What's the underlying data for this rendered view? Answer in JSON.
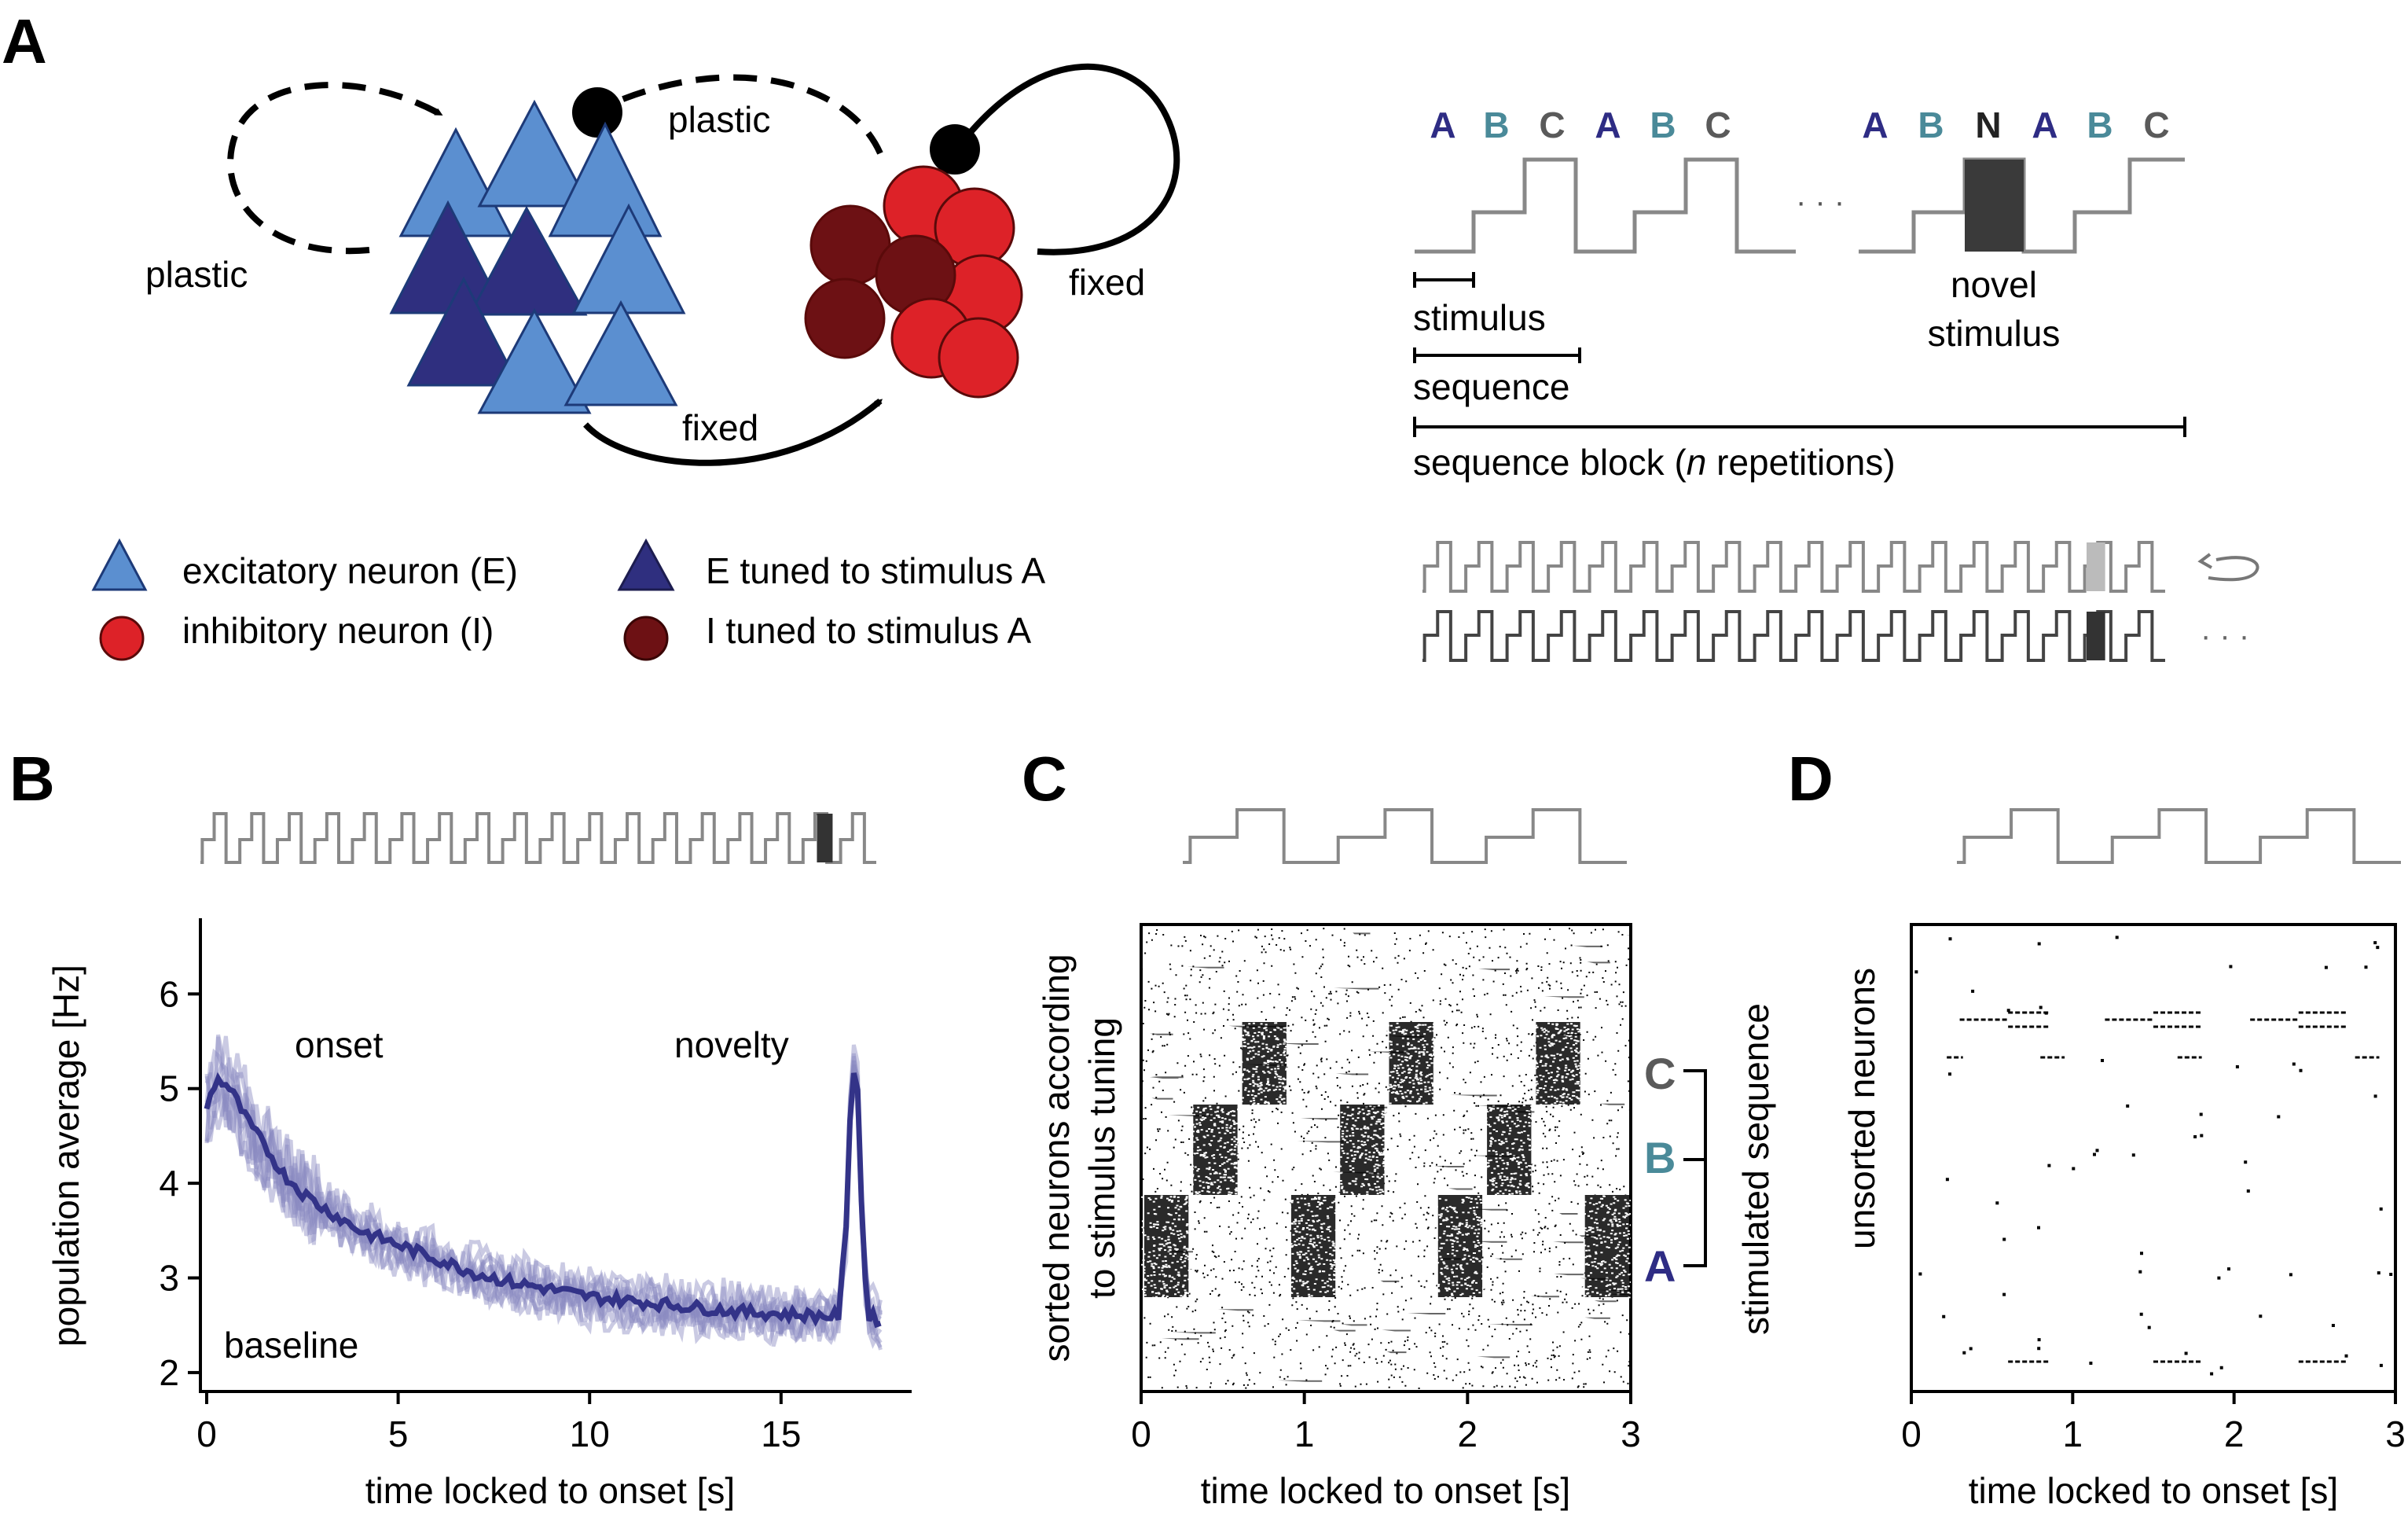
{
  "panel_labels": {
    "a": "A",
    "b": "B",
    "c": "C",
    "d": "D"
  },
  "colors": {
    "excitatory": "#5b8fd0",
    "excitatory_tuned": "#2f2f7f",
    "inhibitory": "#dd2228",
    "inhibitory_tuned": "#6d1114",
    "stimulus_A": "#2e2c84",
    "stimulus_B": "#4a8a99",
    "stimulus_C": "#5a5a5a",
    "novel": "#3a3a3a",
    "trace": "#9a9a9a",
    "mean_line": "#333388"
  },
  "panel_a": {
    "network": {
      "plastic_left": "plastic",
      "plastic_top": "plastic",
      "fixed_bottom": "fixed",
      "fixed_right": "fixed"
    },
    "legend": {
      "excitatory": "excitatory neuron (E)",
      "inhibitory": "inhibitory neuron (I)",
      "e_tuned": "E tuned to stimulus A",
      "i_tuned": "I tuned to stimulus A"
    },
    "protocol": {
      "letters_first": [
        "A",
        "B",
        "C",
        "A",
        "B",
        "C"
      ],
      "letters_second": [
        "A",
        "B",
        "N",
        "A",
        "B",
        "C"
      ],
      "ellipsis": "· · ·",
      "novel_label_1": "novel",
      "novel_label_2": "stimulus",
      "stimulus_label": "stimulus",
      "sequence_label": "sequence",
      "block_prefix": "sequence block (",
      "block_n": "n",
      "block_suffix": " repetitions)",
      "trailing_dots": "· · ·"
    }
  },
  "panel_b": {
    "ylabel": "population average [Hz]",
    "xlabel": "time locked to onset [s]",
    "onset_label": "onset",
    "novelty_label": "novelty",
    "baseline_label": "baseline",
    "x_ticks": [
      "0",
      "5",
      "10",
      "15"
    ],
    "y_ticks": [
      "2",
      "3",
      "4",
      "5",
      "6"
    ]
  },
  "panel_c": {
    "ylabel_1": "sorted neurons according",
    "ylabel_2": "to stimulus tuning",
    "xlabel": "time locked to onset [s]",
    "x_ticks": [
      "0",
      "1",
      "2",
      "3"
    ],
    "seq_letters": [
      "C",
      "B",
      "A"
    ],
    "side_label": "stimulated sequence"
  },
  "panel_d": {
    "ylabel": "unsorted neurons",
    "xlabel": "time locked to onset [s]",
    "x_ticks": [
      "0",
      "1",
      "2",
      "3"
    ]
  },
  "chart_data": [
    {
      "type": "line",
      "panel": "B",
      "xlabel": "time locked to onset [s]",
      "ylabel": "population average [Hz]",
      "xlim": [
        0,
        18
      ],
      "ylim": [
        1.8,
        6.8
      ],
      "series": [
        {
          "x": [
            0,
            0.25,
            0.5,
            0.75,
            1,
            1.5,
            2,
            2.5,
            3,
            4,
            5,
            6,
            7,
            8,
            9,
            10,
            11,
            12,
            13,
            14,
            15,
            16,
            16.5,
            16.7,
            16.85,
            17.0,
            17.15,
            17.3,
            17.6
          ],
          "y": [
            4.8,
            5.1,
            5.05,
            4.9,
            4.7,
            4.4,
            4.1,
            3.9,
            3.75,
            3.5,
            3.35,
            3.2,
            3.05,
            2.95,
            2.88,
            2.8,
            2.76,
            2.72,
            2.68,
            2.64,
            2.62,
            2.6,
            2.6,
            3.5,
            5.3,
            5.0,
            3.2,
            2.6,
            2.55
          ]
        }
      ],
      "annotations": [
        "onset",
        "novelty",
        "baseline"
      ]
    },
    {
      "type": "scatter",
      "panel": "C",
      "xlabel": "time locked to onset [s]",
      "ylabel": "sorted neurons according to stimulus tuning",
      "xlim": [
        0,
        3
      ],
      "raster_blocks": [
        {
          "stimulus": "A",
          "t_start": 0.0,
          "t_end": 0.3
        },
        {
          "stimulus": "B",
          "t_start": 0.3,
          "t_end": 0.6
        },
        {
          "stimulus": "C",
          "t_start": 0.6,
          "t_end": 0.9
        },
        {
          "stimulus": "A",
          "t_start": 0.9,
          "t_end": 1.2
        },
        {
          "stimulus": "B",
          "t_start": 1.2,
          "t_end": 1.5
        },
        {
          "stimulus": "C",
          "t_start": 1.5,
          "t_end": 1.8
        },
        {
          "stimulus": "A",
          "t_start": 1.8,
          "t_end": 2.1
        },
        {
          "stimulus": "B",
          "t_start": 2.1,
          "t_end": 2.4
        },
        {
          "stimulus": "C",
          "t_start": 2.4,
          "t_end": 2.7
        },
        {
          "stimulus": "A",
          "t_start": 2.7,
          "t_end": 3.0
        }
      ]
    },
    {
      "type": "scatter",
      "panel": "D",
      "xlabel": "time locked to onset [s]",
      "ylabel": "unsorted neurons",
      "xlim": [
        0,
        3
      ]
    }
  ]
}
